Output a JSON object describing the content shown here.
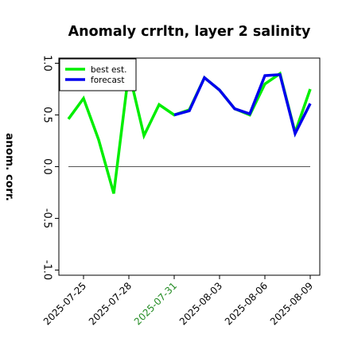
{
  "chart_data": {
    "type": "line",
    "title": "Anomaly crrltn, layer 2 salinity",
    "ylabel": "anom. corr.",
    "xlabel": "",
    "ylim": [
      -1.05,
      1.05
    ],
    "yticks": [
      -1.0,
      -0.5,
      0.0,
      0.5,
      1.0
    ],
    "ytick_labels": [
      "-1.0",
      "-0.5",
      "0.0",
      "0.5",
      "1.0"
    ],
    "x": [
      "2025-07-24",
      "2025-07-25",
      "2025-07-26",
      "2025-07-27",
      "2025-07-28",
      "2025-07-29",
      "2025-07-30",
      "2025-07-31",
      "2025-08-01",
      "2025-08-02",
      "2025-08-03",
      "2025-08-04",
      "2025-08-05",
      "2025-08-06",
      "2025-08-07",
      "2025-08-08",
      "2025-08-09"
    ],
    "xticks": [
      {
        "label": "2025-07-25",
        "color": "#000000"
      },
      {
        "label": "2025-07-28",
        "color": "#000000"
      },
      {
        "label": "2025-07-31",
        "color": "#228b22"
      },
      {
        "label": "2025-08-03",
        "color": "#000000"
      },
      {
        "label": "2025-08-06",
        "color": "#000000"
      },
      {
        "label": "2025-08-09",
        "color": "#000000"
      }
    ],
    "zero_line": 0.0,
    "legend_position": "top-left",
    "grid": false,
    "series": [
      {
        "name": "best est.",
        "color": "#00ee00",
        "values": [
          0.46,
          0.66,
          0.26,
          -0.26,
          0.92,
          0.3,
          0.6,
          0.5,
          0.55,
          0.86,
          0.74,
          0.56,
          0.5,
          0.8,
          0.9,
          0.33,
          0.75
        ]
      },
      {
        "name": "forecast",
        "color": "#0000ee",
        "values": [
          null,
          null,
          null,
          null,
          null,
          null,
          null,
          0.5,
          0.54,
          0.86,
          0.74,
          0.56,
          0.51,
          0.88,
          0.89,
          0.32,
          0.61
        ]
      }
    ]
  }
}
